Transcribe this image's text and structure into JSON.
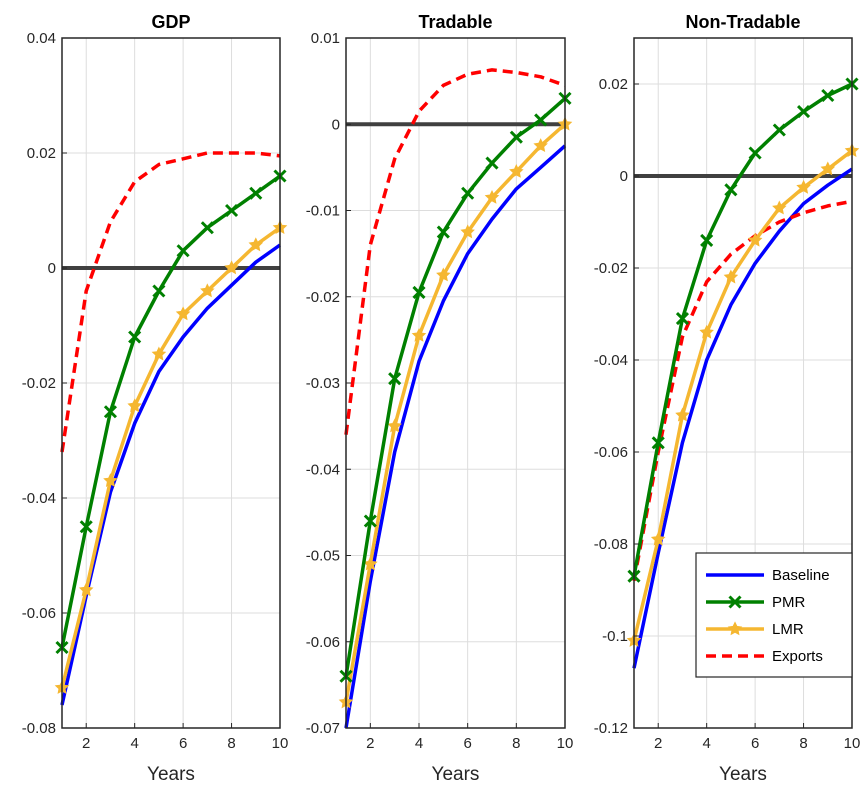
{
  "legend": {
    "placement": "bottom-right",
    "entries": [
      {
        "label": "Baseline",
        "color": "#0000ff",
        "style": "solid",
        "marker": "none"
      },
      {
        "label": "PMR",
        "color": "#008000",
        "style": "solid",
        "marker": "x"
      },
      {
        "label": "LMR",
        "color": "#f5b731",
        "style": "solid",
        "marker": "star"
      },
      {
        "label": "Exports",
        "color": "#ff0000",
        "style": "dashed",
        "marker": "none"
      }
    ]
  },
  "chart_data": [
    {
      "type": "line",
      "title": "GDP",
      "xlabel": "Years",
      "ylabel": "",
      "xlim": [
        1,
        10
      ],
      "ylim": [
        -0.08,
        0.04
      ],
      "xticks": [
        "2",
        "4",
        "6",
        "8",
        "10"
      ],
      "yticks": [
        "-0.08",
        "-0.06",
        "-0.04",
        "-0.02",
        "0",
        "0.02",
        "0.04"
      ],
      "grid": true,
      "zero_line": true,
      "x": [
        1,
        2,
        3,
        4,
        5,
        6,
        7,
        8,
        9,
        10
      ],
      "series": [
        {
          "name": "Baseline",
          "values": [
            -0.076,
            -0.057,
            -0.039,
            -0.027,
            -0.018,
            -0.012,
            -0.007,
            -0.003,
            0.001,
            0.004
          ]
        },
        {
          "name": "PMR",
          "values": [
            -0.066,
            -0.045,
            -0.025,
            -0.012,
            -0.004,
            0.003,
            0.007,
            0.01,
            0.013,
            0.016
          ]
        },
        {
          "name": "LMR",
          "values": [
            -0.073,
            -0.056,
            -0.037,
            -0.024,
            -0.015,
            -0.008,
            -0.004,
            0.0,
            0.004,
            0.007
          ]
        },
        {
          "name": "Exports",
          "values": [
            -0.032,
            -0.004,
            0.008,
            0.015,
            0.018,
            0.019,
            0.02,
            0.02,
            0.02,
            0.0195
          ]
        }
      ]
    },
    {
      "type": "line",
      "title": "Tradable",
      "xlabel": "Years",
      "ylabel": "",
      "xlim": [
        1,
        10
      ],
      "ylim": [
        -0.07,
        0.01
      ],
      "xticks": [
        "2",
        "4",
        "6",
        "8",
        "10"
      ],
      "yticks": [
        "-0.07",
        "-0.06",
        "-0.05",
        "-0.04",
        "-0.03",
        "-0.02",
        "-0.01",
        "0",
        "0.01"
      ],
      "grid": true,
      "zero_line": true,
      "x": [
        1,
        2,
        3,
        4,
        5,
        6,
        7,
        8,
        9,
        10
      ],
      "series": [
        {
          "name": "Baseline",
          "values": [
            -0.07,
            -0.053,
            -0.038,
            -0.0275,
            -0.0205,
            -0.015,
            -0.011,
            -0.0075,
            -0.005,
            -0.0025
          ]
        },
        {
          "name": "PMR",
          "values": [
            -0.064,
            -0.046,
            -0.0295,
            -0.0195,
            -0.0125,
            -0.008,
            -0.0045,
            -0.0015,
            0.0005,
            0.003
          ]
        },
        {
          "name": "LMR",
          "values": [
            -0.067,
            -0.051,
            -0.035,
            -0.0245,
            -0.0175,
            -0.0125,
            -0.0085,
            -0.0055,
            -0.0025,
            0.0
          ]
        },
        {
          "name": "Exports",
          "values": [
            -0.036,
            -0.014,
            -0.004,
            0.0015,
            0.0045,
            0.0058,
            0.0063,
            0.006,
            0.0055,
            0.0045
          ]
        }
      ]
    },
    {
      "type": "line",
      "title": "Non-Tradable",
      "xlabel": "Years",
      "ylabel": "",
      "xlim": [
        1,
        10
      ],
      "ylim": [
        -0.12,
        0.03
      ],
      "xticks": [
        "2",
        "4",
        "6",
        "8",
        "10"
      ],
      "yticks": [
        "-0.12",
        "-0.1",
        "-0.08",
        "-0.06",
        "-0.04",
        "-0.02",
        "0",
        "0.02"
      ],
      "grid": true,
      "zero_line": true,
      "x": [
        1,
        2,
        3,
        4,
        5,
        6,
        7,
        8,
        9,
        10
      ],
      "series": [
        {
          "name": "Baseline",
          "values": [
            -0.107,
            -0.082,
            -0.058,
            -0.04,
            -0.028,
            -0.019,
            -0.012,
            -0.006,
            -0.002,
            0.0015
          ]
        },
        {
          "name": "PMR",
          "values": [
            -0.087,
            -0.058,
            -0.031,
            -0.014,
            -0.003,
            0.005,
            0.01,
            0.014,
            0.0175,
            0.02
          ]
        },
        {
          "name": "LMR",
          "values": [
            -0.101,
            -0.079,
            -0.052,
            -0.034,
            -0.022,
            -0.014,
            -0.007,
            -0.0025,
            0.0015,
            0.0055
          ]
        },
        {
          "name": "Exports",
          "values": [
            -0.088,
            -0.06,
            -0.035,
            -0.023,
            -0.017,
            -0.013,
            -0.01,
            -0.008,
            -0.0065,
            -0.0055
          ]
        }
      ]
    }
  ]
}
